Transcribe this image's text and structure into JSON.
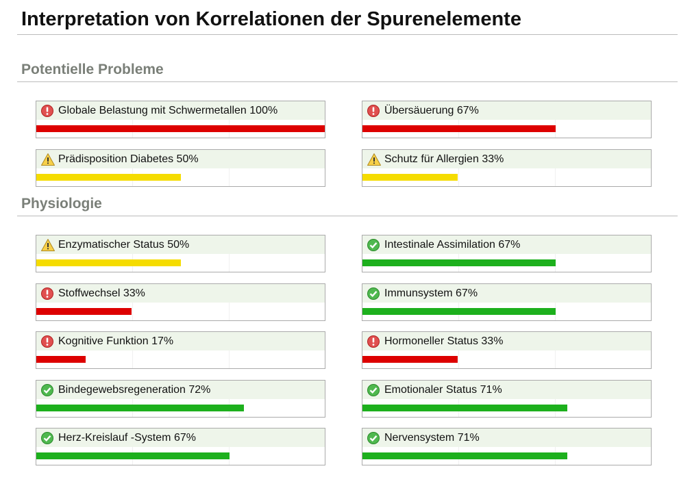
{
  "header": {
    "title": "Interpretation von Korrelationen der Spurenelemente"
  },
  "sections": [
    {
      "title": "Potentielle Probleme",
      "items": [
        {
          "label": "Globale Belastung mit Schwermetallen",
          "value": 100,
          "value_label": "100%",
          "status": "error"
        },
        {
          "label": "Übersäuerung",
          "value": 67,
          "value_label": "67%",
          "status": "error"
        },
        {
          "label": "Prädisposition Diabetes",
          "value": 50,
          "value_label": "50%",
          "status": "warning"
        },
        {
          "label": "Schutz für Allergien",
          "value": 33,
          "value_label": "33%",
          "status": "warning"
        }
      ]
    },
    {
      "title": "Physiologie",
      "items": [
        {
          "label": "Enzymatischer Status",
          "value": 50,
          "value_label": "50%",
          "status": "warning"
        },
        {
          "label": "Intestinale Assimilation",
          "value": 67,
          "value_label": "67%",
          "status": "ok"
        },
        {
          "label": "Stoffwechsel",
          "value": 33,
          "value_label": "33%",
          "status": "error"
        },
        {
          "label": "Immunsystem",
          "value": 67,
          "value_label": "67%",
          "status": "ok"
        },
        {
          "label": "Kognitive Funktion",
          "value": 17,
          "value_label": "17%",
          "status": "error"
        },
        {
          "label": "Hormoneller Status",
          "value": 33,
          "value_label": "33%",
          "status": "error"
        },
        {
          "label": "Bindegewebsregeneration",
          "value": 72,
          "value_label": "72%",
          "status": "ok"
        },
        {
          "label": "Emotionaler Status",
          "value": 71,
          "value_label": "71%",
          "status": "ok"
        },
        {
          "label": "Herz-Kreislauf -System",
          "value": 67,
          "value_label": "67%",
          "status": "ok"
        },
        {
          "label": "Nervensystem",
          "value": 71,
          "value_label": "71%",
          "status": "ok"
        }
      ]
    }
  ]
}
